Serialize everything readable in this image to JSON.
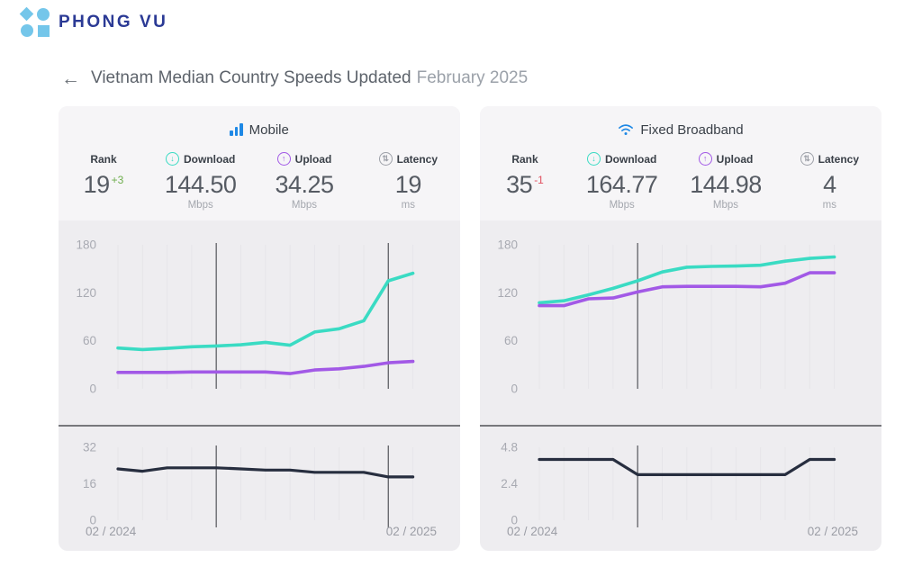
{
  "logo": {
    "brand": "PHONG VU"
  },
  "header": {
    "back_arrow": "←",
    "title": "Vietnam Median Country Speeds Updated",
    "period": "February 2025"
  },
  "colors": {
    "download_line": "#3adbc3",
    "upload_line": "#a259e6",
    "latency_line": "#272e3f",
    "gridline": "#e6e5e9",
    "marker_line": "#6a6b70",
    "tick_text": "#a8aab2",
    "axis_date_text": "#9b9da5",
    "accent_blue": "#1e88e5",
    "rank_up_green": "#6fae4e",
    "rank_down_red": "#e04f5f"
  },
  "cards": [
    {
      "title": "Mobile",
      "icon": "signal-bars-icon",
      "stats": [
        {
          "label": "Rank",
          "value": "19",
          "delta": "+3",
          "delta_color": "#6fae4e"
        },
        {
          "label": "Download",
          "value": "144.50",
          "unit": "Mbps",
          "icon": "download-circle-icon",
          "icon_color": "#3adbc3",
          "arrow": "↓"
        },
        {
          "label": "Upload",
          "value": "34.25",
          "unit": "Mbps",
          "icon": "upload-circle-icon",
          "icon_color": "#a259e6",
          "arrow": "↑"
        },
        {
          "label": "Latency",
          "value": "19",
          "unit": "ms",
          "icon": "latency-circle-icon",
          "icon_color": "#9da0a8",
          "arrow": "⇅"
        }
      ]
    },
    {
      "title": "Fixed Broadband",
      "icon": "wifi-icon",
      "stats": [
        {
          "label": "Rank",
          "value": "35",
          "delta": "-1",
          "delta_color": "#e04f5f"
        },
        {
          "label": "Download",
          "value": "164.77",
          "unit": "Mbps",
          "icon": "download-circle-icon",
          "icon_color": "#3adbc3",
          "arrow": "↓"
        },
        {
          "label": "Upload",
          "value": "144.98",
          "unit": "Mbps",
          "icon": "upload-circle-icon",
          "icon_color": "#a259e6",
          "arrow": "↑"
        },
        {
          "label": "Latency",
          "value": "4",
          "unit": "ms",
          "icon": "latency-circle-icon",
          "icon_color": "#9da0a8",
          "arrow": "⇅"
        }
      ]
    }
  ],
  "chart_data": [
    {
      "type": "line",
      "title": "Mobile speeds (Mbps), 02/2024 - 02/2025",
      "n_points": 13,
      "ylim": [
        0,
        180
      ],
      "yticks": [
        "0",
        "60",
        "120",
        "180"
      ],
      "marker_indices": [
        4,
        11
      ],
      "grid": "vertical-monthly",
      "legend_position": "none",
      "series": [
        {
          "name": "Download",
          "color": "#3adbc3",
          "values": [
            51,
            49,
            50.5,
            52.5,
            53.5,
            55,
            58,
            54.5,
            71,
            75,
            85,
            135,
            144.5
          ]
        },
        {
          "name": "Upload",
          "color": "#a259e6",
          "values": [
            20.5,
            20.5,
            20.5,
            21,
            21,
            21,
            21,
            19,
            23.5,
            25,
            28,
            32.5,
            34.25
          ]
        }
      ]
    },
    {
      "type": "line",
      "title": "Mobile latency (ms), 02/2024 - 02/2025",
      "n_points": 13,
      "ylim": [
        0,
        32
      ],
      "yticks": [
        "0",
        "16",
        "32"
      ],
      "marker_indices": [
        4,
        11
      ],
      "grid": "vertical-monthly",
      "x_labels": [
        "02 / 2024",
        "02 / 2025"
      ],
      "series": [
        {
          "name": "Latency",
          "color": "#272e3f",
          "values": [
            22.5,
            21.5,
            23,
            23,
            23,
            22.5,
            22,
            22,
            21,
            21,
            21,
            19,
            19
          ]
        }
      ]
    },
    {
      "type": "line",
      "title": "Fixed Broadband speeds (Mbps), 02/2024 - 02/2025",
      "n_points": 13,
      "ylim": [
        0,
        180
      ],
      "yticks": [
        "0",
        "60",
        "120",
        "180"
      ],
      "marker_indices": [
        4
      ],
      "grid": "vertical-monthly",
      "legend_position": "none",
      "series": [
        {
          "name": "Download",
          "color": "#3adbc3",
          "values": [
            107.5,
            110,
            117.5,
            125.5,
            135,
            146,
            152,
            153,
            153.5,
            154.5,
            159.5,
            163,
            164.77
          ]
        },
        {
          "name": "Upload",
          "color": "#a259e6",
          "values": [
            104,
            104,
            112.5,
            113.5,
            121,
            127.5,
            128,
            128,
            128,
            127.5,
            132,
            145,
            144.98
          ]
        }
      ]
    },
    {
      "type": "line",
      "title": "Fixed Broadband latency (ms), 02/2024 - 02/2025",
      "n_points": 13,
      "ylim": [
        0,
        4.8
      ],
      "yticks": [
        "0",
        "2.4",
        "4.8"
      ],
      "marker_indices": [
        4
      ],
      "grid": "vertical-monthly",
      "x_labels": [
        "02 / 2024",
        "02 / 2025"
      ],
      "series": [
        {
          "name": "Latency",
          "color": "#272e3f",
          "values": [
            4,
            4,
            4,
            4,
            3,
            3,
            3,
            3,
            3,
            3,
            3,
            4,
            4
          ]
        }
      ]
    }
  ]
}
